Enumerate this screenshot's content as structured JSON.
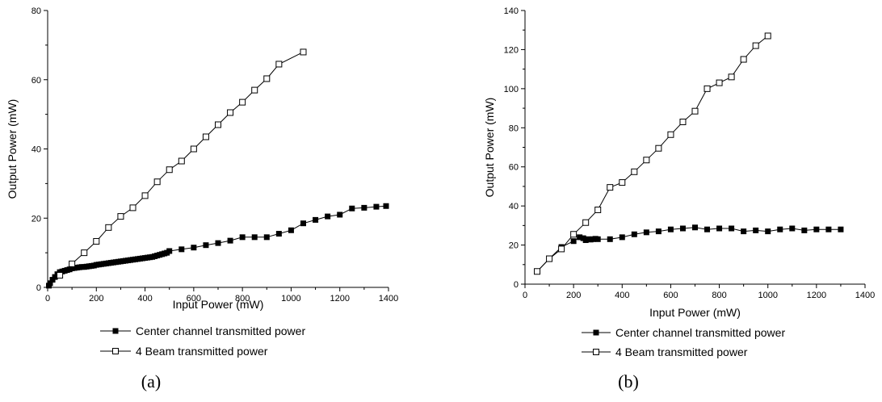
{
  "chart_data": [
    {
      "type": "line",
      "caption": "(a)",
      "xlabel": "Input Power (mW)",
      "ylabel": "Output Power (mW)",
      "xlim": [
        0,
        1400
      ],
      "ylim": [
        0,
        80
      ],
      "xticks": [
        0,
        200,
        400,
        600,
        800,
        1000,
        1200,
        1400
      ],
      "yticks": [
        0,
        20,
        40,
        60,
        80
      ],
      "legend_position": "bottom",
      "series": [
        {
          "name": "Center channel transmitted power",
          "marker": "filled-square",
          "x": [
            5,
            10,
            20,
            30,
            40,
            50,
            60,
            70,
            80,
            90,
            100,
            110,
            120,
            130,
            140,
            150,
            160,
            170,
            180,
            190,
            200,
            210,
            220,
            230,
            240,
            250,
            260,
            270,
            280,
            290,
            300,
            310,
            320,
            330,
            340,
            350,
            360,
            370,
            380,
            390,
            400,
            410,
            420,
            430,
            440,
            450,
            460,
            470,
            480,
            490,
            500,
            550,
            600,
            650,
            700,
            750,
            800,
            850,
            900,
            950,
            1000,
            1050,
            1100,
            1150,
            1200,
            1250,
            1300,
            1350,
            1390
          ],
          "y": [
            0.5,
            1.2,
            2.2,
            3.0,
            3.8,
            4.4,
            4.6,
            4.8,
            5.0,
            5.2,
            5.5,
            5.6,
            5.7,
            5.8,
            5.9,
            5.9,
            6.0,
            6.1,
            6.2,
            6.3,
            6.5,
            6.6,
            6.7,
            6.8,
            6.9,
            7.0,
            7.1,
            7.2,
            7.3,
            7.4,
            7.5,
            7.6,
            7.7,
            7.8,
            7.9,
            8.0,
            8.1,
            8.2,
            8.3,
            8.4,
            8.5,
            8.6,
            8.7,
            8.8,
            9.0,
            9.2,
            9.4,
            9.6,
            9.8,
            10.0,
            10.5,
            11.0,
            11.5,
            12.2,
            12.8,
            13.5,
            14.5,
            14.5,
            14.5,
            15.5,
            16.5,
            18.5,
            19.5,
            20.5,
            21.0,
            22.8,
            23.0,
            23.3,
            23.5
          ]
        },
        {
          "name": "4 Beam transmitted power",
          "marker": "open-square",
          "x": [
            50,
            100,
            150,
            200,
            250,
            300,
            350,
            400,
            450,
            500,
            550,
            600,
            650,
            700,
            750,
            800,
            850,
            900,
            950,
            1050
          ],
          "y": [
            3.5,
            6.8,
            10.0,
            13.3,
            17.3,
            20.5,
            23.0,
            26.5,
            30.5,
            34.0,
            36.5,
            40.0,
            43.5,
            47.0,
            50.5,
            53.5,
            57.0,
            60.3,
            64.5,
            68.0
          ]
        }
      ]
    },
    {
      "type": "line",
      "caption": "(b)",
      "xlabel": "Input Power (mW)",
      "ylabel": "Output Power (mW)",
      "xlim": [
        0,
        1400
      ],
      "ylim": [
        0,
        140
      ],
      "xticks": [
        0,
        200,
        400,
        600,
        800,
        1000,
        1200,
        1400
      ],
      "yticks": [
        0,
        20,
        40,
        60,
        80,
        100,
        120,
        140
      ],
      "legend_position": "bottom",
      "series": [
        {
          "name": "Center channel transmitted power",
          "marker": "filled-square",
          "x": [
            50,
            100,
            150,
            200,
            225,
            240,
            250,
            260,
            270,
            280,
            290,
            300,
            350,
            400,
            450,
            500,
            550,
            600,
            650,
            700,
            750,
            800,
            850,
            900,
            950,
            1000,
            1050,
            1100,
            1150,
            1200,
            1250,
            1300
          ],
          "y": [
            6.5,
            13.0,
            19.0,
            22.0,
            24.0,
            23.5,
            22.5,
            23.0,
            22.8,
            23.0,
            23.2,
            23.0,
            23.0,
            24.0,
            25.5,
            26.5,
            27.0,
            28.0,
            28.5,
            29.0,
            28.0,
            28.5,
            28.5,
            27.0,
            27.5,
            27.0,
            28.0,
            28.5,
            27.5,
            28.0,
            28.0,
            28.0
          ]
        },
        {
          "name": "4 Beam transmitted power",
          "marker": "open-square",
          "x": [
            50,
            100,
            150,
            200,
            250,
            300,
            350,
            400,
            450,
            500,
            550,
            600,
            650,
            700,
            750,
            800,
            850,
            900,
            950,
            1000
          ],
          "y": [
            6.5,
            13.0,
            18.0,
            25.5,
            31.5,
            38.0,
            49.5,
            52.0,
            57.5,
            63.5,
            69.5,
            76.5,
            83.0,
            88.5,
            100.0,
            103.0,
            106.0,
            115.0,
            122.0,
            127.0
          ]
        }
      ]
    }
  ]
}
